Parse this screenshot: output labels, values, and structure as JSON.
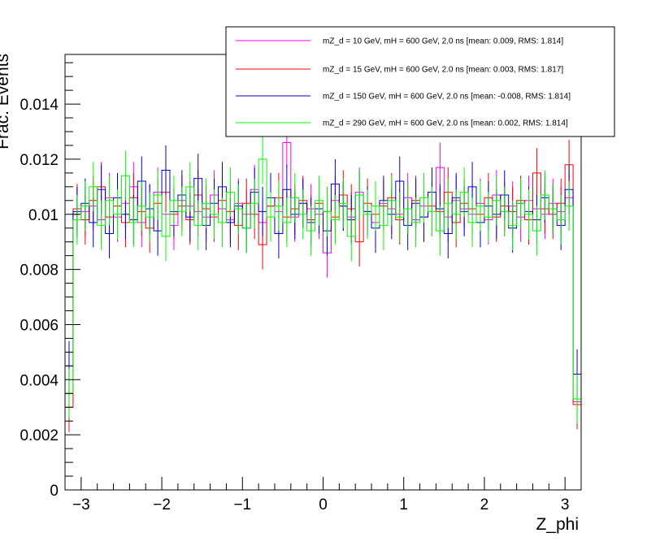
{
  "chart_data": {
    "type": "line",
    "title": "",
    "xlabel": "Z_phi",
    "ylabel": "Frac. Events",
    "xlim": [
      -3.2,
      3.2
    ],
    "ylim": [
      0,
      0.0158
    ],
    "x_ticks": [
      -3,
      -2,
      -1,
      0,
      1,
      2,
      3
    ],
    "x_tick_labels": [
      "−3",
      "−2",
      "−1",
      "0",
      "1",
      "2",
      "3"
    ],
    "y_ticks": [
      0,
      0.002,
      0.004,
      0.006,
      0.008,
      0.01,
      0.012,
      0.014
    ],
    "y_tick_labels": [
      "0",
      "0.002",
      "0.004",
      "0.006",
      "0.008",
      "0.01",
      "0.012",
      "0.014"
    ],
    "grid": false,
    "legend_position": "top-right",
    "n_bins": 64,
    "series": [
      {
        "name": "mZ_d = 10 GeV, mH = 600 GeV, 2.0 ns [mean: 0.009, RMS: 1.814]",
        "color": "#ff00ff",
        "error": 0.0009,
        "values": [
          0.0035,
          0.01,
          0.0101,
          0.0103,
          0.0098,
          0.0106,
          0.0099,
          0.0104,
          0.011,
          0.0097,
          0.0102,
          0.0108,
          0.01,
          0.0096,
          0.0105,
          0.0103,
          0.0101,
          0.0099,
          0.0107,
          0.0102,
          0.0098,
          0.0104,
          0.01,
          0.0109,
          0.0097,
          0.0103,
          0.0101,
          0.0126,
          0.0099,
          0.0104,
          0.0102,
          0.01,
          0.0086,
          0.0105,
          0.0103,
          0.0099,
          0.0108,
          0.0101,
          0.0097,
          0.0104,
          0.0102,
          0.01,
          0.0106,
          0.0098,
          0.0103,
          0.0101,
          0.0117,
          0.0099,
          0.0105,
          0.0102,
          0.01,
          0.0104,
          0.0098,
          0.0107,
          0.0101,
          0.0103,
          0.0099,
          0.0105,
          0.0102,
          0.01,
          0.0104,
          0.0101,
          0.0106,
          0.0032
        ]
      },
      {
        "name": "mZ_d = 15 GeV, mH = 600 GeV, 2.0 ns [mean: 0.003, RMS: 1.817]",
        "color": "#ff0000",
        "error": 0.0009,
        "values": [
          0.003,
          0.0102,
          0.0098,
          0.0105,
          0.011,
          0.0099,
          0.0103,
          0.0097,
          0.0106,
          0.0101,
          0.0095,
          0.0104,
          0.0108,
          0.01,
          0.0103,
          0.0098,
          0.0107,
          0.0102,
          0.0099,
          0.0105,
          0.0101,
          0.0096,
          0.0104,
          0.01,
          0.0089,
          0.0103,
          0.0106,
          0.0099,
          0.0102,
          0.0105,
          0.0098,
          0.0104,
          0.0101,
          0.0099,
          0.0107,
          0.0102,
          0.009,
          0.0104,
          0.01,
          0.0103,
          0.0106,
          0.0098,
          0.0102,
          0.0105,
          0.0099,
          0.0103,
          0.0101,
          0.0108,
          0.0097,
          0.0104,
          0.0102,
          0.01,
          0.0106,
          0.0099,
          0.0103,
          0.0101,
          0.0105,
          0.0098,
          0.0115,
          0.0102,
          0.01,
          0.0104,
          0.0118,
          0.0031
        ]
      },
      {
        "name": "mZ_d = 150 GeV, mH = 600 GeV, 2.0 ns [mean: -0.008, RMS: 1.814]",
        "color": "#0000cc",
        "error": 0.0009,
        "values": [
          0.0045,
          0.0101,
          0.0104,
          0.0097,
          0.0109,
          0.0093,
          0.0106,
          0.01,
          0.0098,
          0.0112,
          0.0102,
          0.0094,
          0.0116,
          0.0101,
          0.0107,
          0.0099,
          0.0113,
          0.0096,
          0.0104,
          0.011,
          0.0097,
          0.0103,
          0.0095,
          0.0108,
          0.0101,
          0.0106,
          0.0093,
          0.0109,
          0.01,
          0.0104,
          0.0097,
          0.0102,
          0.0094,
          0.0111,
          0.0103,
          0.0098,
          0.0107,
          0.0101,
          0.0095,
          0.0105,
          0.01,
          0.0112,
          0.0096,
          0.0104,
          0.0099,
          0.0108,
          0.0102,
          0.0093,
          0.0106,
          0.0101,
          0.011,
          0.0097,
          0.0103,
          0.01,
          0.0107,
          0.0095,
          0.0104,
          0.0101,
          0.0098,
          0.0106,
          0.0102,
          0.0096,
          0.0109,
          0.0042
        ]
      },
      {
        "name": "mZ_d = 290 GeV, mH = 600 GeV, 2.0 ns [mean: 0.002, RMS: 1.814]",
        "color": "#00ff00",
        "error": 0.0009,
        "values": [
          0.0035,
          0.0098,
          0.0103,
          0.011,
          0.0096,
          0.0105,
          0.01,
          0.0114,
          0.0097,
          0.0103,
          0.0099,
          0.0107,
          0.0092,
          0.0105,
          0.0101,
          0.011,
          0.0096,
          0.0104,
          0.01,
          0.0097,
          0.0108,
          0.0102,
          0.0095,
          0.0104,
          0.012,
          0.0099,
          0.0103,
          0.0097,
          0.0106,
          0.01,
          0.0094,
          0.0105,
          0.0101,
          0.0098,
          0.0104,
          0.0092,
          0.0107,
          0.01,
          0.0103,
          0.0096,
          0.0105,
          0.0099,
          0.0102,
          0.0097,
          0.0106,
          0.0101,
          0.0094,
          0.0104,
          0.01,
          0.0108,
          0.0097,
          0.0103,
          0.0099,
          0.0105,
          0.0101,
          0.0096,
          0.0104,
          0.01,
          0.0094,
          0.0107,
          0.0102,
          0.0098,
          0.0103,
          0.0033
        ]
      }
    ]
  }
}
